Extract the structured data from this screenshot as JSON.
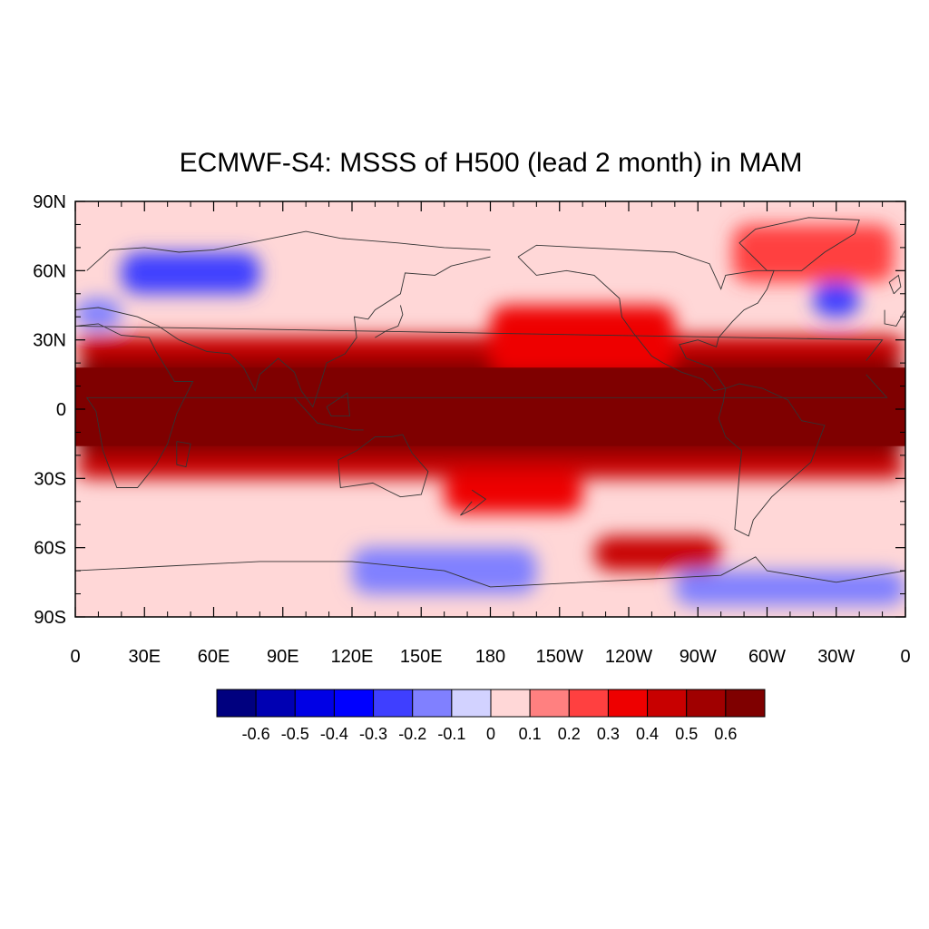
{
  "title": "ECMWF-S4: MSSS of H500 (lead 2 month) in MAM",
  "map": {
    "projection": "cylindrical-equidistant",
    "lon_range": [
      0,
      360
    ],
    "lat_range": [
      -90,
      90
    ],
    "lat_ticks": [
      {
        "lat": 90,
        "label": "90N"
      },
      {
        "lat": 60,
        "label": "60N"
      },
      {
        "lat": 30,
        "label": "30N"
      },
      {
        "lat": 0,
        "label": "0"
      },
      {
        "lat": -30,
        "label": "30S"
      },
      {
        "lat": -60,
        "label": "60S"
      },
      {
        "lat": -90,
        "label": "90S"
      }
    ],
    "lon_ticks": [
      {
        "lon": 0,
        "label": "0"
      },
      {
        "lon": 30,
        "label": "30E"
      },
      {
        "lon": 60,
        "label": "60E"
      },
      {
        "lon": 90,
        "label": "90E"
      },
      {
        "lon": 120,
        "label": "120E"
      },
      {
        "lon": 150,
        "label": "150E"
      },
      {
        "lon": 180,
        "label": "180"
      },
      {
        "lon": 210,
        "label": "150W"
      },
      {
        "lon": 240,
        "label": "120W"
      },
      {
        "lon": 270,
        "label": "90W"
      },
      {
        "lon": 300,
        "label": "60W"
      },
      {
        "lon": 330,
        "label": "30W"
      },
      {
        "lon": 360,
        "label": "0"
      }
    ],
    "field_regions": [
      {
        "name": "tropical-band",
        "level": 0.6,
        "lon": [
          0,
          360
        ],
        "lat": [
          -20,
          22
        ]
      },
      {
        "name": "subtropical-north",
        "level": 0.4,
        "lon": [
          0,
          360
        ],
        "lat": [
          22,
          32
        ]
      },
      {
        "name": "subtropical-south",
        "level": 0.4,
        "lon": [
          0,
          360
        ],
        "lat": [
          -30,
          -20
        ]
      },
      {
        "name": "north-pacific-high-skill",
        "level": 0.3,
        "lon": [
          180,
          260
        ],
        "lat": [
          15,
          45
        ]
      },
      {
        "name": "south-pacific-high-skill",
        "level": 0.3,
        "lon": [
          160,
          220
        ],
        "lat": [
          -45,
          -28
        ]
      },
      {
        "name": "southern-ocean-high-skill",
        "level": 0.4,
        "lon": [
          225,
          280
        ],
        "lat": [
          -70,
          -55
        ]
      },
      {
        "name": "greenland-high-skill",
        "level": 0.2,
        "lon": [
          285,
          355
        ],
        "lat": [
          55,
          80
        ]
      },
      {
        "name": "eurasia-low-skill",
        "level": -0.3,
        "lon": [
          20,
          80
        ],
        "lat": [
          50,
          68
        ]
      },
      {
        "name": "europe-low-skill",
        "level": -0.2,
        "lon": [
          0,
          20
        ],
        "lat": [
          35,
          48
        ]
      },
      {
        "name": "atlantic-low-skill",
        "level": -0.3,
        "lon": [
          320,
          340
        ],
        "lat": [
          40,
          55
        ]
      },
      {
        "name": "antarctic-low-skill",
        "level": -0.2,
        "lon": [
          120,
          200
        ],
        "lat": [
          -80,
          -60
        ]
      },
      {
        "name": "antarctic-coast-low-skill",
        "level": -0.2,
        "lon": [
          260,
          360
        ],
        "lat": [
          -85,
          -70
        ]
      }
    ]
  },
  "colorbar": {
    "colors": [
      "#00007f",
      "#0000b2",
      "#0000e5",
      "#0000ff",
      "#3f3fff",
      "#8080ff",
      "#d2d2ff",
      "#ffd7d7",
      "#ff8080",
      "#ff4040",
      "#ee0000",
      "#c80000",
      "#a00000",
      "#7f0000"
    ],
    "labels": [
      "-0.6",
      "-0.5",
      "-0.4",
      "-0.3",
      "-0.2",
      "-0.1",
      "0",
      "0.1",
      "0.2",
      "0.3",
      "0.4",
      "0.5",
      "0.6"
    ]
  }
}
